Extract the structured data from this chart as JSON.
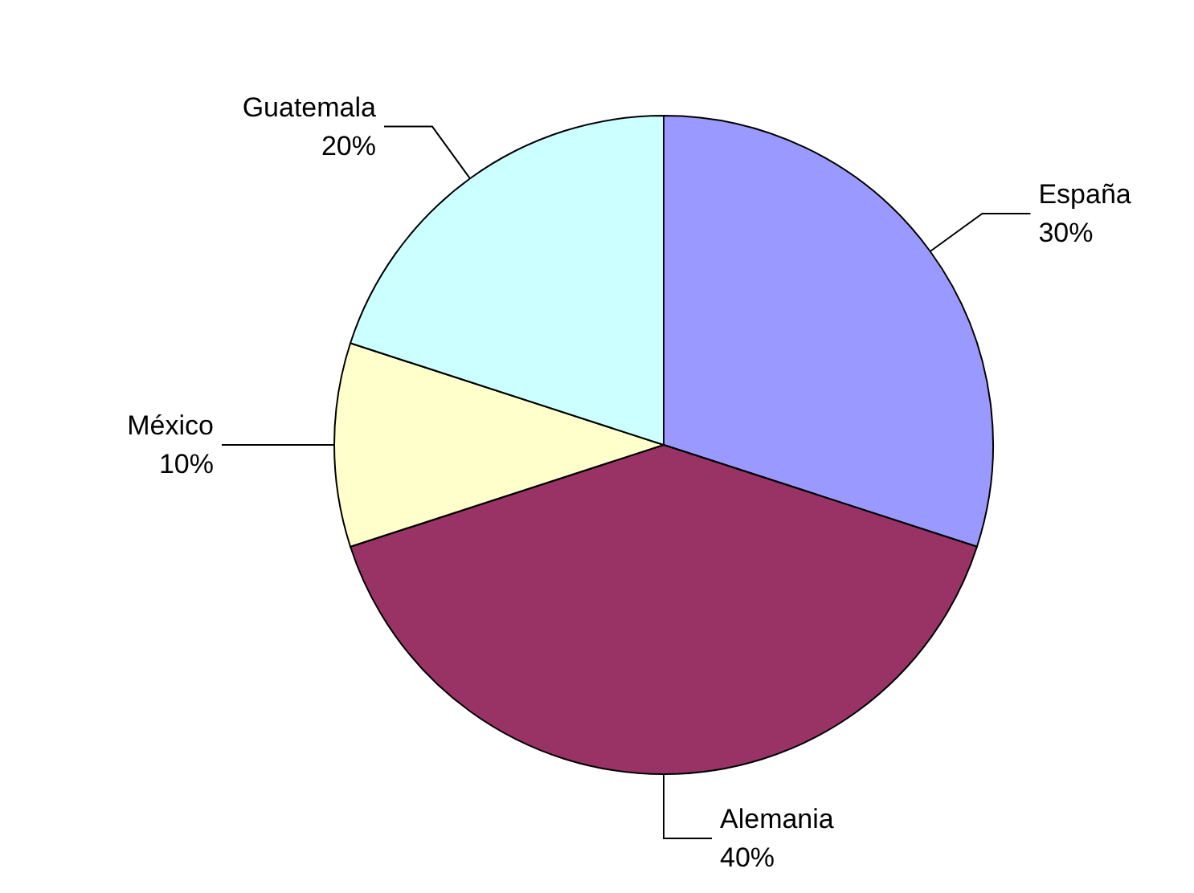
{
  "chart_data": {
    "type": "pie",
    "categories": [
      "España",
      "Alemania",
      "México",
      "Guatemala"
    ],
    "values": [
      30,
      40,
      10,
      20
    ],
    "colors": [
      "#9999ff",
      "#993366",
      "#ffffcc",
      "#ccffff"
    ],
    "value_labels": [
      "30%",
      "40%",
      "10%",
      "20%"
    ],
    "legend": false
  }
}
